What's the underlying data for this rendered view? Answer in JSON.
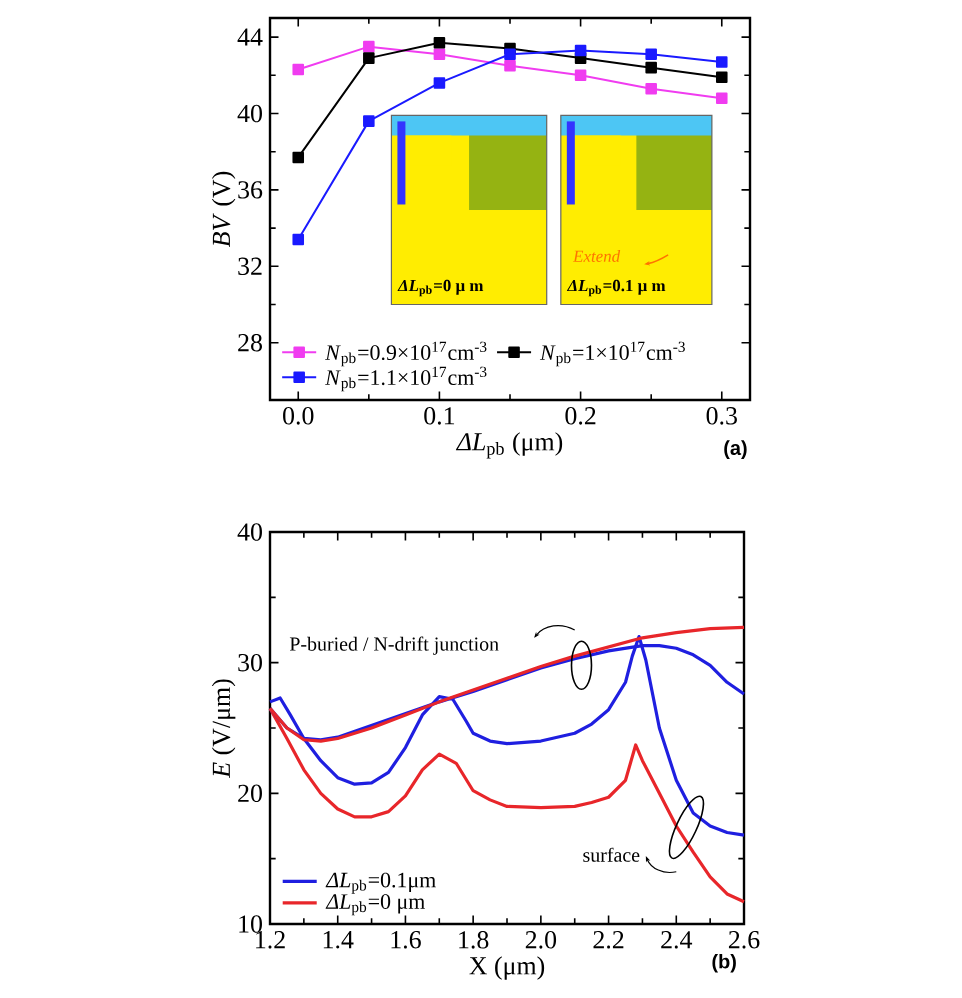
{
  "chart_data": [
    {
      "type": "line",
      "xlabel": "*ΔL*$_{pb}$ (μm)",
      "ylabel": "*BV* (V)",
      "x": [
        0,
        0.05,
        0.1,
        0.15,
        0.2,
        0.25,
        0.3
      ],
      "series": [
        {
          "name": "*N*$_{pb}$=0.9×10$^{17}$cm$^{-3}$",
          "color": "#f03cf0",
          "values": [
            42.3,
            43.5,
            43.1,
            42.5,
            42.0,
            41.3,
            40.8
          ]
        },
        {
          "name": "*N*$_{pb}$=1×10$^{17}$cm$^{-3}$",
          "color": "#000000",
          "values": [
            37.7,
            42.9,
            43.7,
            43.4,
            42.9,
            42.4,
            41.9
          ]
        },
        {
          "name": "*N*$_{pb}$=1.1×10$^{17}$cm$^{-3}$",
          "color": "#1a1aff",
          "values": [
            33.4,
            39.6,
            41.6,
            43.1,
            43.3,
            43.1,
            42.7
          ]
        }
      ],
      "xlim": [
        -0.02,
        0.32
      ],
      "ylim": [
        25,
        45
      ],
      "xticks": [
        {
          "value": 0,
          "label": "0.0"
        },
        {
          "value": 0.1,
          "label": "0.1"
        },
        {
          "value": 0.2,
          "label": "0.2"
        },
        {
          "value": 0.3,
          "label": "0.3"
        }
      ],
      "yticks": [
        28,
        32,
        36,
        40,
        44
      ],
      "marker": "square",
      "legend": "bottom left",
      "annotations": [
        "*ΔL*$_{pb}$=0 μ m",
        "*ΔL*$_{pb}$=0.1 μ m",
        "Extend",
        "(a)"
      ]
    },
    {
      "type": "line",
      "xlabel": "X (μm)",
      "ylabel": "*E* (V/μm)",
      "series": [
        {
          "name": "*ΔL*$_{pb}$=0.1μm",
          "color": "#1f1fe0",
          "x": [
            1.2,
            1.23,
            1.26,
            1.3,
            1.35,
            1.4,
            1.45,
            1.5,
            1.55,
            1.6,
            1.65,
            1.7,
            1.74,
            1.78,
            1.8,
            1.85,
            1.9,
            2.0,
            2.1,
            2.15,
            2.2,
            2.25,
            2.27,
            2.29,
            2.31,
            2.35,
            2.4,
            2.45,
            2.5,
            2.55,
            2.6
          ],
          "values": [
            27,
            27.3,
            26,
            24.2,
            22.5,
            21.2,
            20.7,
            20.8,
            21.6,
            23.5,
            26,
            27.4,
            27.2,
            25.5,
            24.6,
            24,
            23.8,
            24,
            24.6,
            25.3,
            26.4,
            28.5,
            30.5,
            32,
            30.2,
            25,
            21,
            18.5,
            17.5,
            17,
            16.8
          ]
        },
        {
          "name": "*ΔL*$_{pb}$=0 μm",
          "color": "#e8262a",
          "x": [
            1.2,
            1.25,
            1.3,
            1.35,
            1.4,
            1.45,
            1.5,
            1.55,
            1.6,
            1.65,
            1.7,
            1.75,
            1.8,
            1.85,
            1.9,
            2.0,
            2.1,
            2.15,
            2.2,
            2.25,
            2.28,
            2.3,
            2.35,
            2.4,
            2.45,
            2.5,
            2.55,
            2.6
          ],
          "values": [
            26.5,
            24.2,
            21.8,
            20,
            18.8,
            18.2,
            18.2,
            18.6,
            19.8,
            21.8,
            23,
            22.3,
            20.2,
            19.5,
            19,
            18.9,
            19,
            19.3,
            19.7,
            21,
            23.7,
            22.5,
            20,
            17.5,
            15.5,
            13.6,
            12.3,
            11.7
          ]
        },
        {
          "color": "#1f1fe0",
          "x": [
            1.2,
            1.25,
            1.3,
            1.35,
            1.4,
            1.5,
            1.6,
            1.7,
            1.8,
            1.9,
            2.0,
            2.1,
            2.2,
            2.3,
            2.35,
            2.4,
            2.45,
            2.5,
            2.55,
            2.6
          ],
          "values": [
            26.5,
            25,
            24.2,
            24.1,
            24.3,
            null,
            null,
            27,
            27.8,
            28.7,
            29.6,
            30.3,
            30.9,
            31.3,
            31.3,
            31.1,
            30.6,
            29.8,
            28.5,
            27.6
          ]
        },
        {
          "color": "#e8262a",
          "x": [
            1.2,
            1.25,
            1.3,
            1.35,
            1.4,
            1.5,
            1.6,
            1.7,
            1.8,
            1.9,
            2.0,
            2.1,
            2.2,
            2.3,
            2.4,
            2.5,
            2.6
          ],
          "values": [
            26.5,
            25,
            24.1,
            24,
            24.2,
            25,
            26,
            27,
            27.9,
            28.8,
            29.7,
            30.5,
            31.2,
            31.9,
            32.3,
            32.6,
            32.7
          ]
        }
      ],
      "xlim": [
        1.2,
        2.6
      ],
      "ylim": [
        10,
        40
      ],
      "xticks": [
        1.2,
        1.4,
        1.6,
        1.8,
        {
          "value": 2,
          "label": "2.0"
        },
        2.2,
        2.4,
        2.6
      ],
      "yticks": [
        10,
        20,
        30,
        40
      ],
      "marker": "none",
      "legend": "bottom left",
      "annotations": [
        "P-buried / N-drift junction",
        "surface",
        "(b)"
      ]
    }
  ]
}
